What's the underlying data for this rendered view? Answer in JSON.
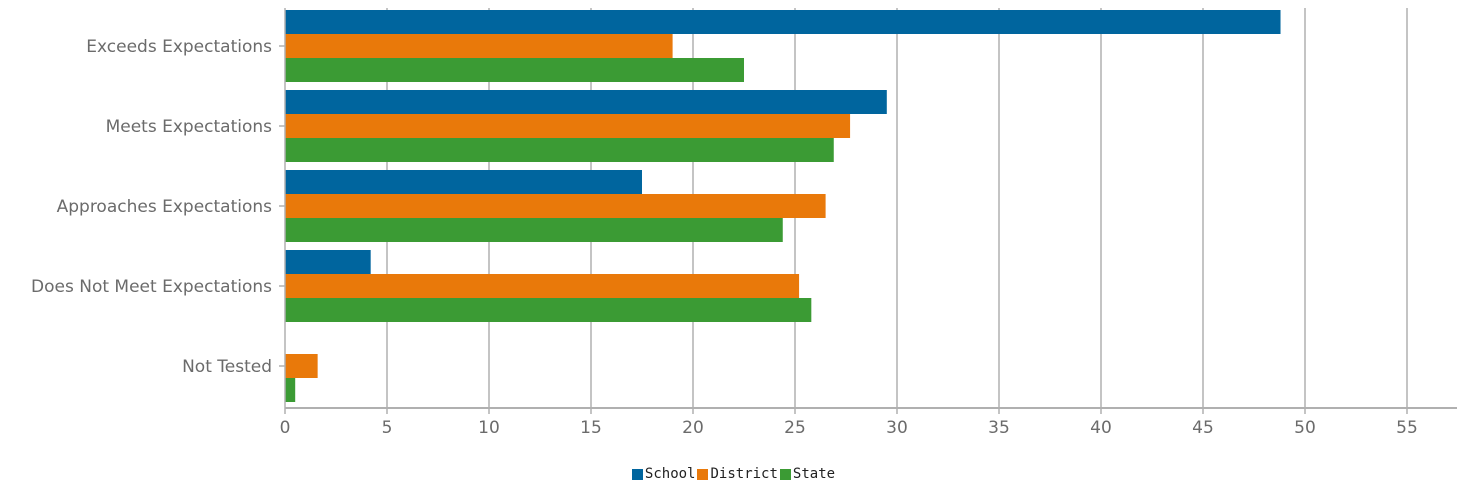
{
  "chart_data": {
    "type": "bar",
    "orientation": "horizontal",
    "categories": [
      "Exceeds Expectations",
      "Meets Expectations",
      "Approaches Expectations",
      "Does Not Meet Expectations",
      "Not Tested"
    ],
    "series": [
      {
        "name": "School",
        "color": "#00659e",
        "values": [
          48.8,
          29.5,
          17.5,
          4.2,
          0
        ]
      },
      {
        "name": "District",
        "color": "#e9790a",
        "values": [
          19.0,
          27.7,
          26.5,
          25.2,
          1.6
        ]
      },
      {
        "name": "State",
        "color": "#3b9b34",
        "values": [
          22.5,
          26.9,
          24.4,
          25.8,
          0.5
        ]
      }
    ],
    "xlim": [
      0,
      57
    ],
    "xticks": [
      0,
      5,
      10,
      15,
      20,
      25,
      30,
      35,
      40,
      45,
      50,
      55
    ],
    "grid": true,
    "legend_position": "bottom"
  }
}
